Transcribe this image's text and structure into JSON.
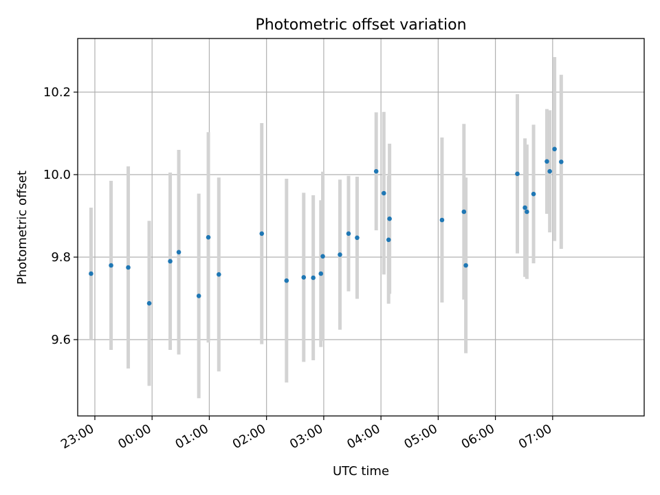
{
  "chart_data": {
    "type": "scatter",
    "title": "Photometric offset variation",
    "xlabel": "UTC time",
    "ylabel": "Photometric offset",
    "xlim": [
      "22:42",
      "08:36"
    ],
    "ylim": [
      9.415,
      10.33
    ],
    "grid": true,
    "x_ticks": [
      "23:00",
      "00:00",
      "01:00",
      "02:00",
      "03:00",
      "04:00",
      "05:00",
      "06:00",
      "07:00"
    ],
    "y_ticks": [
      "9.6",
      "9.8",
      "10.0",
      "10.2"
    ],
    "point_color": "#1f77b4",
    "errorbar_color": "#d3d3d3",
    "series": [
      {
        "points": [
          {
            "x": "22:56",
            "y": 9.76,
            "yerr": 0.16
          },
          {
            "x": "23:17",
            "y": 9.78,
            "yerr": 0.205
          },
          {
            "x": "23:35",
            "y": 9.775,
            "yerr": 0.245
          },
          {
            "x": "23:57",
            "y": 9.688,
            "yerr": 0.2
          },
          {
            "x": "00:19",
            "y": 9.79,
            "yerr": 0.215
          },
          {
            "x": "00:28",
            "y": 9.812,
            "yerr": 0.248
          },
          {
            "x": "00:49",
            "y": 9.706,
            "yerr": 0.248
          },
          {
            "x": "00:59",
            "y": 9.848,
            "yerr": 0.255
          },
          {
            "x": "01:10",
            "y": 9.758,
            "yerr": 0.235
          },
          {
            "x": "01:55",
            "y": 9.857,
            "yerr": 0.268
          },
          {
            "x": "02:21",
            "y": 9.743,
            "yerr": 0.247
          },
          {
            "x": "02:39",
            "y": 9.751,
            "yerr": 0.205
          },
          {
            "x": "02:49",
            "y": 9.75,
            "yerr": 0.2
          },
          {
            "x": "02:57",
            "y": 9.76,
            "yerr": 0.178
          },
          {
            "x": "02:59",
            "y": 9.802,
            "yerr": 0.205
          },
          {
            "x": "03:17",
            "y": 9.806,
            "yerr": 0.182
          },
          {
            "x": "03:26",
            "y": 9.857,
            "yerr": 0.14
          },
          {
            "x": "03:35",
            "y": 9.847,
            "yerr": 0.148
          },
          {
            "x": "03:55",
            "y": 10.008,
            "yerr": 0.143
          },
          {
            "x": "04:03",
            "y": 9.955,
            "yerr": 0.197
          },
          {
            "x": "04:08",
            "y": 9.842,
            "yerr": 0.155
          },
          {
            "x": "04:09",
            "y": 9.893,
            "yerr": 0.182
          },
          {
            "x": "05:04",
            "y": 9.89,
            "yerr": 0.2
          },
          {
            "x": "05:27",
            "y": 9.91,
            "yerr": 0.213
          },
          {
            "x": "05:29",
            "y": 9.78,
            "yerr": 0.213
          },
          {
            "x": "06:23",
            "y": 10.002,
            "yerr": 0.193
          },
          {
            "x": "06:31",
            "y": 9.92,
            "yerr": 0.168
          },
          {
            "x": "06:33",
            "y": 9.91,
            "yerr": 0.163
          },
          {
            "x": "06:40",
            "y": 9.953,
            "yerr": 0.168
          },
          {
            "x": "06:54",
            "y": 10.032,
            "yerr": 0.127
          },
          {
            "x": "06:57",
            "y": 10.008,
            "yerr": 0.148
          },
          {
            "x": "07:02",
            "y": 10.062,
            "yerr": 0.223
          },
          {
            "x": "07:09",
            "y": 10.031,
            "yerr": 0.211
          }
        ]
      }
    ]
  }
}
